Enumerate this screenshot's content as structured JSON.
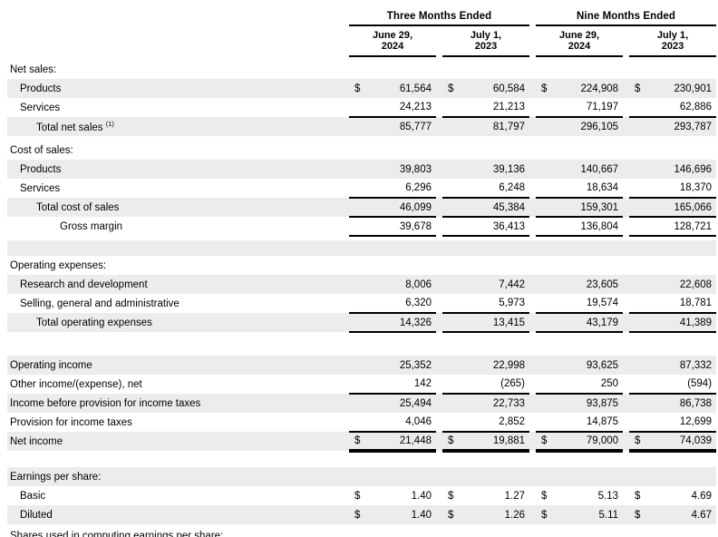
{
  "document": {
    "kind": "condensed-consolidated-statement-of-operations"
  },
  "header": {
    "groups": [
      {
        "label": "Three Months Ended",
        "cols": [
          {
            "line1": "June 29,",
            "line2": "2024"
          },
          {
            "line1": "July 1,",
            "line2": "2023"
          }
        ]
      },
      {
        "label": "Nine Months Ended",
        "cols": [
          {
            "line1": "June 29,",
            "line2": "2024"
          },
          {
            "line1": "July 1,",
            "line2": "2023"
          }
        ]
      }
    ]
  },
  "styles": {
    "shaded_row_color": "#ececec",
    "border_color": "#000000",
    "text_color": "#000000"
  },
  "rows": [
    {
      "label": "Net sales:",
      "indent": 0
    },
    {
      "label": "Products",
      "indent": 1,
      "dollar": true,
      "shaded": true,
      "values": [
        "61,564",
        "60,584",
        "224,908",
        "230,901"
      ]
    },
    {
      "label": "Services",
      "indent": 1,
      "underline": "thin",
      "values": [
        "24,213",
        "21,213",
        "71,197",
        "62,886"
      ]
    },
    {
      "label": "Total net sales",
      "sup": "(1)",
      "indent": 2,
      "shaded": true,
      "values": [
        "85,777",
        "81,797",
        "296,105",
        "293,787"
      ]
    },
    {
      "type": "spacer",
      "height": 5
    },
    {
      "label": "Cost of sales:",
      "indent": 0
    },
    {
      "label": "Products",
      "indent": 1,
      "shaded": true,
      "values": [
        "39,803",
        "39,136",
        "140,667",
        "146,696"
      ]
    },
    {
      "label": "Services",
      "indent": 1,
      "underline": "thin",
      "values": [
        "6,296",
        "6,248",
        "18,634",
        "18,370"
      ]
    },
    {
      "label": "Total cost of sales",
      "indent": 2,
      "shaded": true,
      "underline": "thin",
      "values": [
        "46,099",
        "45,384",
        "159,301",
        "165,066"
      ]
    },
    {
      "label": "Gross margin",
      "indent": 3,
      "underline": "thin",
      "values": [
        "39,678",
        "36,413",
        "136,804",
        "128,721"
      ]
    },
    {
      "type": "spacer",
      "height": 5
    },
    {
      "type": "spacer",
      "height": 17,
      "shaded": true
    },
    {
      "label": "Operating expenses:",
      "indent": 0
    },
    {
      "label": "Research and development",
      "indent": 1,
      "shaded": true,
      "values": [
        "8,006",
        "7,442",
        "23,605",
        "22,608"
      ]
    },
    {
      "label": "Selling, general and administrative",
      "indent": 1,
      "underline": "thin",
      "values": [
        "6,320",
        "5,973",
        "19,574",
        "18,781"
      ]
    },
    {
      "label": "Total operating expenses",
      "indent": 2,
      "shaded": true,
      "underline": "thin",
      "values": [
        "14,326",
        "13,415",
        "43,179",
        "41,389"
      ]
    },
    {
      "type": "spacer",
      "height": 26
    },
    {
      "label": "Operating income",
      "indent": 0,
      "shaded": true,
      "values": [
        "25,352",
        "22,998",
        "93,625",
        "87,332"
      ]
    },
    {
      "label": "Other income/(expense), net",
      "indent": 0,
      "underline": "thin",
      "values": [
        "142",
        "(265)",
        "250",
        "(594)"
      ]
    },
    {
      "label": "Income before provision for income taxes",
      "indent": 0,
      "shaded": true,
      "values": [
        "25,494",
        "22,733",
        "93,875",
        "86,738"
      ]
    },
    {
      "label": "Provision for income taxes",
      "indent": 0,
      "underline": "thin",
      "values": [
        "4,046",
        "2,852",
        "14,875",
        "12,699"
      ]
    },
    {
      "label": "Net income",
      "indent": 0,
      "dollar": true,
      "shaded": true,
      "underline": "thick",
      "values": [
        "21,448",
        "19,881",
        "79,000",
        "74,039"
      ]
    },
    {
      "type": "spacer",
      "height": 18
    },
    {
      "label": "Earnings per share:",
      "indent": 0,
      "shaded": true
    },
    {
      "label": "Basic",
      "indent": 1,
      "dollar": true,
      "values": [
        "1.40",
        "1.27",
        "5.13",
        "4.69"
      ]
    },
    {
      "label": "Diluted",
      "indent": 1,
      "dollar": true,
      "shaded": true,
      "values": [
        "1.40",
        "1.26",
        "5.11",
        "4.67"
      ]
    },
    {
      "type": "spacer",
      "height": 6
    },
    {
      "label": "Shares used in computing earnings per share:",
      "indent": 0,
      "cutoff": true
    }
  ]
}
